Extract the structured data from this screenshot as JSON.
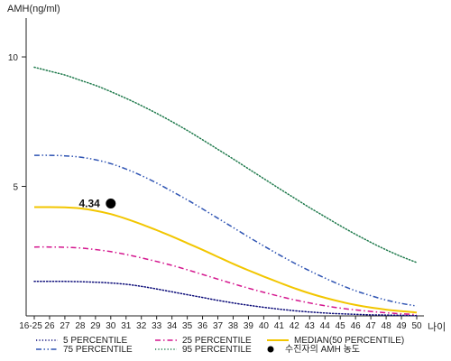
{
  "chart_data": {
    "type": "line",
    "ylabel": "AMH(ng/ml)",
    "xlabel": "나이",
    "x": [
      "16-25",
      "26",
      "27",
      "28",
      "29",
      "30",
      "31",
      "32",
      "33",
      "34",
      "35",
      "36",
      "37",
      "38",
      "39",
      "40",
      "41",
      "42",
      "43",
      "44",
      "45",
      "46",
      "47",
      "48",
      "49",
      "50"
    ],
    "y_ticks": [
      {
        "value": 5,
        "label": "5"
      },
      {
        "value": 10,
        "label": "10"
      }
    ],
    "ylim": [
      0,
      11.5
    ],
    "grid": false,
    "legend_position": "bottom",
    "series": [
      {
        "name": "5 PERCENTILE",
        "color": "#0a0a78",
        "style": "dotted",
        "values": [
          1.33,
          1.33,
          1.33,
          1.32,
          1.3,
          1.27,
          1.22,
          1.14,
          1.04,
          0.93,
          0.82,
          0.71,
          0.6,
          0.5,
          0.41,
          0.33,
          0.26,
          0.2,
          0.15,
          0.11,
          0.08,
          0.06,
          0.04,
          0.03,
          0.02,
          0.01
        ]
      },
      {
        "name": "25 PERCENTILE",
        "color": "#d4168e",
        "style": "dashdot",
        "values": [
          2.66,
          2.66,
          2.65,
          2.62,
          2.56,
          2.48,
          2.37,
          2.24,
          2.1,
          1.95,
          1.78,
          1.6,
          1.42,
          1.24,
          1.07,
          0.91,
          0.76,
          0.62,
          0.5,
          0.39,
          0.3,
          0.23,
          0.17,
          0.12,
          0.08,
          0.05
        ]
      },
      {
        "name": "MEDIAN(50 PERCENTILE)",
        "color": "#f2c600",
        "style": "solid",
        "values": [
          4.2,
          4.2,
          4.19,
          4.15,
          4.06,
          3.93,
          3.75,
          3.54,
          3.31,
          3.07,
          2.81,
          2.55,
          2.28,
          2.01,
          1.76,
          1.52,
          1.29,
          1.07,
          0.87,
          0.7,
          0.55,
          0.42,
          0.32,
          0.24,
          0.18,
          0.13
        ]
      },
      {
        "name": "75 PERCENTILE",
        "color": "#2f54b3",
        "style": "dashdotdot",
        "values": [
          6.2,
          6.2,
          6.18,
          6.13,
          6.03,
          5.88,
          5.67,
          5.42,
          5.13,
          4.81,
          4.48,
          4.13,
          3.77,
          3.41,
          3.05,
          2.7,
          2.36,
          2.04,
          1.74,
          1.46,
          1.2,
          0.97,
          0.78,
          0.61,
          0.48,
          0.38
        ]
      },
      {
        "name": "95 PERCENTILE",
        "color": "#1f7a4c",
        "style": "dotted",
        "values": [
          9.6,
          9.45,
          9.3,
          9.1,
          8.9,
          8.66,
          8.4,
          8.12,
          7.82,
          7.5,
          7.16,
          6.8,
          6.43,
          6.06,
          5.68,
          5.3,
          4.92,
          4.55,
          4.18,
          3.83,
          3.48,
          3.15,
          2.84,
          2.55,
          2.29,
          2.06
        ]
      }
    ],
    "marker": {
      "name": "수진자의 AMH 농도",
      "x": "30",
      "y": 4.34,
      "label": "4.34",
      "color": "#000000"
    }
  }
}
